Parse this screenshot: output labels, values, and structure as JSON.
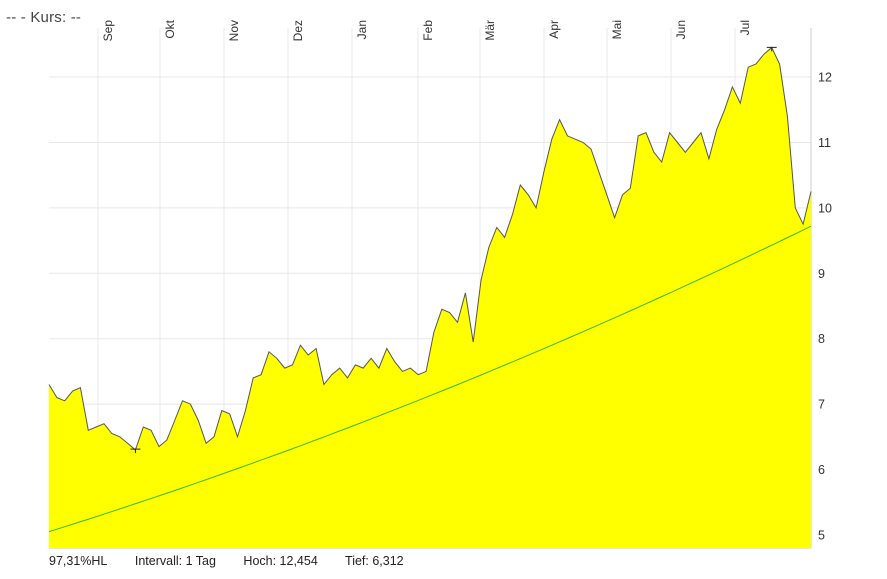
{
  "header": {
    "title": "--  - Kurs: --"
  },
  "footer": {
    "range": "97,31%HL",
    "interval": "Intervall: 1 Tag",
    "high": "Hoch:  12,454",
    "low": "Tief:  6,312"
  },
  "chart_data": {
    "type": "area",
    "title": "--  - Kurs: --",
    "x_tick_labels": [
      "Sep",
      "Okt",
      "Nov",
      "Dez",
      "Jan",
      "Feb",
      "Mär",
      "Apr",
      "Mai",
      "Jun",
      "Jul"
    ],
    "y_tick_labels": [
      "5",
      "6",
      "7",
      "8",
      "9",
      "10",
      "11",
      "12"
    ],
    "ylim": [
      4.8,
      12.75
    ],
    "grid": true,
    "colors": {
      "area": "#ffff00",
      "price_line": "#555555",
      "moving_average": "#33bb33",
      "grid": "#e8e8e8"
    },
    "high": 12.454,
    "low": 6.312,
    "series": [
      {
        "name": "",
        "values": [
          7.3,
          7.1,
          7.05,
          7.2,
          7.25,
          6.6,
          6.65,
          6.7,
          6.55,
          6.5,
          6.4,
          6.3,
          6.65,
          6.6,
          6.35,
          6.45,
          6.75,
          7.05,
          7.0,
          6.75,
          6.4,
          6.5,
          6.9,
          6.85,
          6.5,
          6.9,
          7.4,
          7.45,
          7.8,
          7.7,
          7.55,
          7.6,
          7.9,
          7.75,
          7.85,
          7.3,
          7.45,
          7.55,
          7.4,
          7.6,
          7.55,
          7.7,
          7.55,
          7.85,
          7.65,
          7.5,
          7.55,
          7.45,
          7.5,
          8.1,
          8.45,
          8.4,
          8.25,
          8.7,
          7.95,
          8.9,
          9.4,
          9.7,
          9.55,
          9.9,
          10.35,
          10.2,
          10.0,
          10.55,
          11.05,
          11.35,
          11.1,
          11.05,
          11.0,
          10.9,
          10.55,
          10.2,
          9.85,
          10.2,
          10.3,
          11.1,
          11.15,
          10.85,
          10.7,
          11.15,
          11.0,
          10.85,
          11.0,
          11.15,
          10.75,
          11.2,
          11.5,
          11.85,
          11.6,
          12.15,
          12.2,
          12.35,
          12.45,
          12.2,
          11.4,
          10.0,
          9.75,
          10.25
        ]
      },
      {
        "name": "",
        "values": [
          5.05,
          9.72
        ]
      }
    ]
  }
}
